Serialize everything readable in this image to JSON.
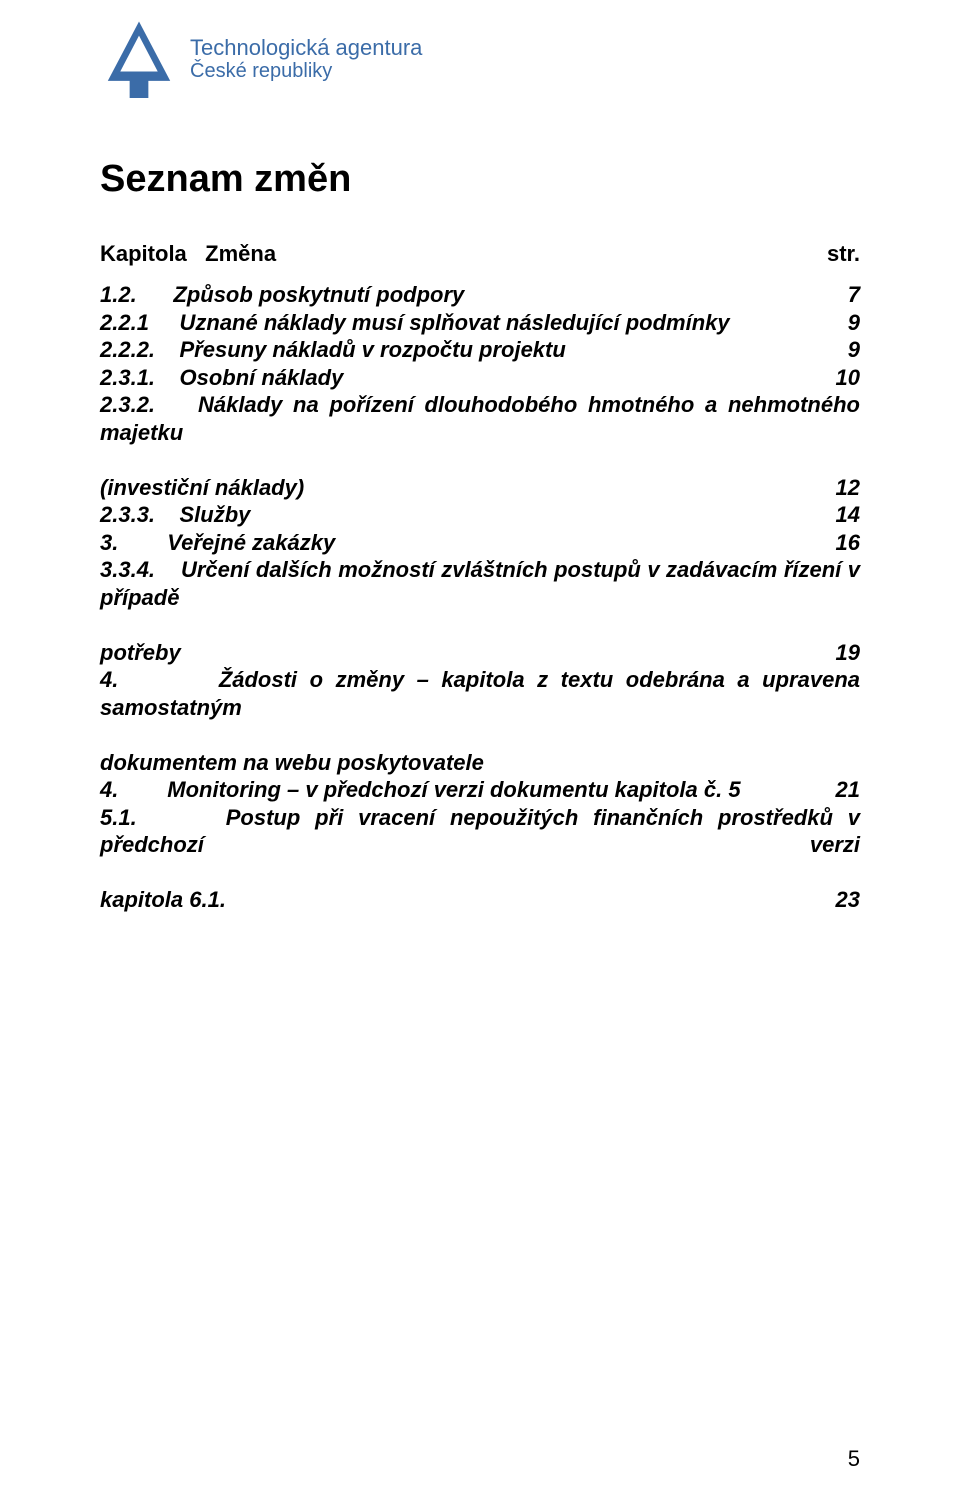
{
  "logo": {
    "color": "#3b6ca8",
    "line1": "Technologická agentura",
    "line2": "České republiky"
  },
  "heading": "Seznam změn",
  "header": {
    "left": "Kapitola",
    "mid": "Změna",
    "right": "str."
  },
  "entries": [
    {
      "num": "1.2.",
      "text": "Způsob poskytnutí podpory",
      "page": "7",
      "justify": false
    },
    {
      "num": "2.2.1",
      "text": "Uznané náklady musí splňovat následující podmínky",
      "page": "9",
      "justify": false
    },
    {
      "num": "2.2.2.",
      "text": "Přesuny nákladů v rozpočtu projektu",
      "page": "9",
      "justify": false
    },
    {
      "num": "2.3.1.",
      "text": "Osobní náklady",
      "page": "10",
      "justify": false
    },
    {
      "num": "2.3.2.",
      "text": "Náklady na pořízení dlouhodobého hmotného a nehmotného majetku (investiční náklady)",
      "page": "12",
      "justify": true,
      "continuation": "(investiční náklady)",
      "firstLine": "Náklady na pořízení dlouhodobého hmotného a nehmotného majetku"
    },
    {
      "num": "2.3.3.",
      "text": "Služby",
      "page": "14",
      "justify": false
    },
    {
      "num": "3.",
      "text": "Veřejné zakázky",
      "page": "16",
      "justify": false
    },
    {
      "num": "3.3.4.",
      "text": "Určení dalších možností zvláštních postupů v zadávacím řízení v případě potřeby",
      "page": "19",
      "justify": true,
      "firstLine": "Určení dalších možností zvláštních postupů v zadávacím řízení v případě",
      "continuation": "potřeby"
    },
    {
      "num": "4.",
      "text": "Žádosti o změny – kapitola z textu odebrána a upravena samostatným dokumentem na webu poskytovatele",
      "page": "",
      "justify": true,
      "firstLine": "Žádosti o změny – kapitola z textu odebrána a upravena samostatným",
      "continuation": "dokumentem na webu poskytovatele"
    },
    {
      "num": "4.",
      "text": "Monitoring – v předchozí verzi dokumentu kapitola č. 5",
      "page": "21",
      "justify": false
    },
    {
      "num": "5.1.",
      "text": "Postup při vracení nepoužitých finančních prostředků v předchozí verzi kapitola 6.1.",
      "page": "23",
      "justify": true,
      "firstLine": "Postup při vracení nepoužitých finančních prostředků v předchozí verzi",
      "continuation": "kapitola 6.1."
    }
  ],
  "pageNumber": "5"
}
